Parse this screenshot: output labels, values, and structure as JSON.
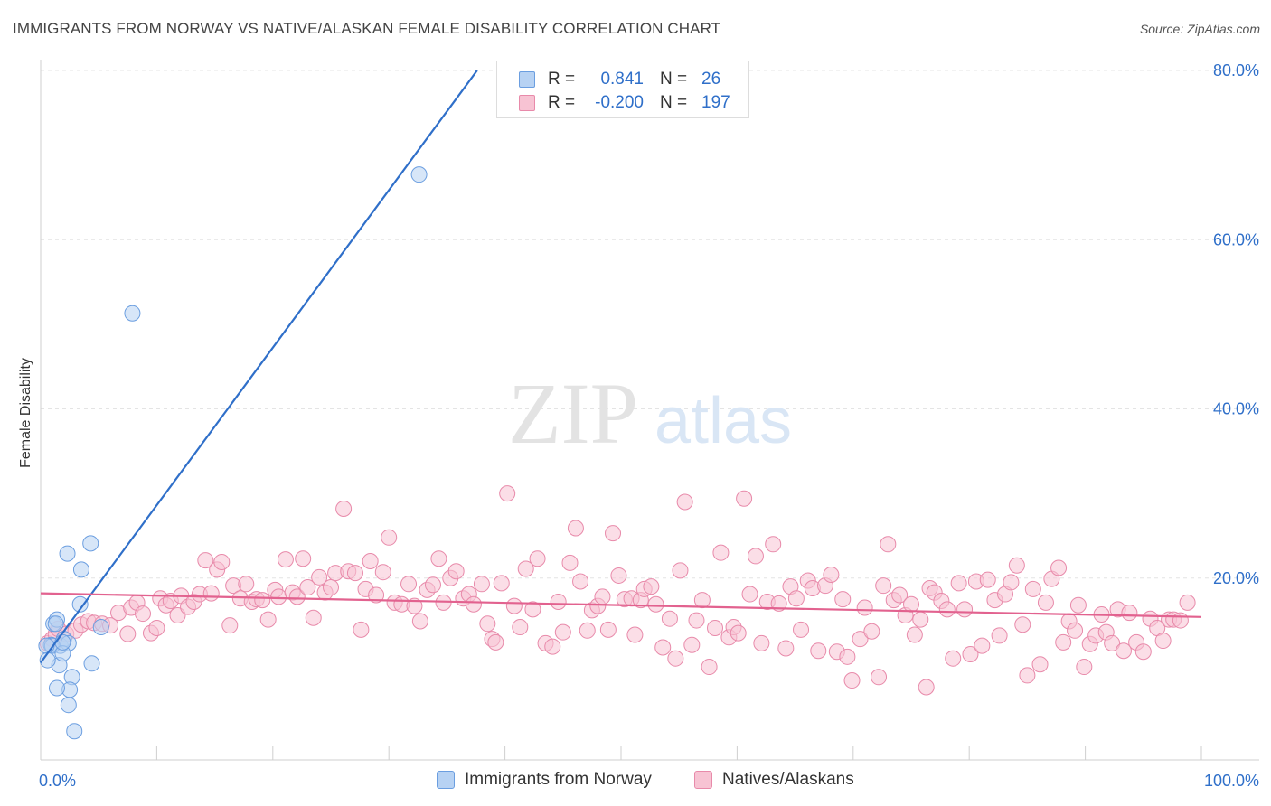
{
  "header": {
    "title": "IMMIGRANTS FROM NORWAY VS NATIVE/ALASKAN FEMALE DISABILITY CORRELATION CHART",
    "source": "Source: ZipAtlas.com"
  },
  "watermark": {
    "zip": "ZIP",
    "atlas": "atlas"
  },
  "legend": {
    "rows": [
      {
        "r_label": "R =",
        "r_value": "0.841",
        "n_label": "N =",
        "n_value": "26"
      },
      {
        "r_label": "R =",
        "r_value": "-0.200",
        "n_label": "N =",
        "n_value": "197"
      }
    ]
  },
  "bottom_legend": {
    "items": [
      {
        "label": "Immigrants from Norway"
      },
      {
        "label": "Natives/Alaskans"
      }
    ]
  },
  "colors": {
    "blue_fill": "#b7d2f3",
    "blue_stroke": "#6b9ee0",
    "blue_line": "#2f6fc9",
    "pink_fill": "#f7c3d3",
    "pink_stroke": "#e88aaa",
    "pink_line": "#e2628f",
    "tick_label": "#2f6fc9",
    "grid": "#e4e4e4"
  },
  "chart_data": {
    "type": "scatter",
    "title": "IMMIGRANTS FROM NORWAY VS NATIVE/ALASKAN FEMALE DISABILITY CORRELATION CHART",
    "xlabel": "",
    "ylabel": "Female Disability",
    "xlim": [
      0,
      100
    ],
    "ylim": [
      0,
      80
    ],
    "x_tick_labels": [
      "0.0%",
      "100.0%"
    ],
    "y_ticks": [
      20,
      40,
      60,
      80
    ],
    "y_tick_labels": [
      "20.0%",
      "40.0%",
      "60.0%",
      "80.0%"
    ],
    "grid": true,
    "legend_position": "top-center",
    "series": [
      {
        "name": "Immigrants from Norway",
        "r": 0.841,
        "n": 26,
        "trend": [
          [
            0,
            10.0
          ],
          [
            37.6,
            80.0
          ]
        ],
        "points": [
          [
            1.1,
            14.6
          ],
          [
            2.3,
            22.9
          ],
          [
            3.5,
            21.0
          ],
          [
            4.3,
            24.1
          ],
          [
            5.2,
            14.2
          ],
          [
            1.7,
            12.0
          ],
          [
            0.9,
            12.1
          ],
          [
            1.4,
            15.1
          ],
          [
            2.0,
            12.8
          ],
          [
            2.4,
            12.3
          ],
          [
            1.6,
            9.7
          ],
          [
            2.7,
            8.3
          ],
          [
            2.5,
            6.8
          ],
          [
            1.4,
            7.0
          ],
          [
            2.4,
            5.0
          ],
          [
            2.9,
            1.9
          ],
          [
            4.4,
            9.9
          ],
          [
            1.0,
            12.0
          ],
          [
            0.5,
            12.0
          ],
          [
            0.6,
            10.3
          ],
          [
            1.3,
            14.6
          ],
          [
            3.4,
            16.9
          ],
          [
            7.9,
            51.3
          ],
          [
            32.6,
            67.7
          ],
          [
            1.9,
            11.1
          ],
          [
            1.9,
            12.4
          ]
        ]
      },
      {
        "name": "Natives/Alaskans",
        "r": -0.2,
        "n": 197,
        "trend": [
          [
            0,
            18.2
          ],
          [
            100,
            15.4
          ]
        ],
        "points": [
          [
            0.6,
            12.3
          ],
          [
            1.0,
            12.8
          ],
          [
            1.3,
            13.4
          ],
          [
            1.5,
            14.0
          ],
          [
            2.2,
            13.4
          ],
          [
            3.0,
            13.8
          ],
          [
            3.5,
            14.5
          ],
          [
            4.1,
            14.9
          ],
          [
            4.6,
            14.7
          ],
          [
            5.3,
            14.6
          ],
          [
            6.0,
            14.4
          ],
          [
            6.7,
            15.9
          ],
          [
            7.5,
            13.4
          ],
          [
            7.8,
            16.5
          ],
          [
            8.3,
            17.1
          ],
          [
            8.8,
            15.8
          ],
          [
            9.5,
            13.5
          ],
          [
            10.0,
            14.1
          ],
          [
            10.3,
            17.6
          ],
          [
            10.8,
            16.8
          ],
          [
            11.2,
            17.3
          ],
          [
            11.8,
            15.6
          ],
          [
            12.1,
            17.9
          ],
          [
            12.7,
            16.6
          ],
          [
            13.2,
            17.2
          ],
          [
            13.7,
            18.1
          ],
          [
            14.2,
            22.1
          ],
          [
            14.7,
            18.2
          ],
          [
            15.2,
            21.0
          ],
          [
            15.6,
            21.9
          ],
          [
            16.3,
            14.4
          ],
          [
            16.6,
            19.1
          ],
          [
            17.2,
            17.6
          ],
          [
            17.7,
            19.3
          ],
          [
            18.2,
            17.2
          ],
          [
            18.6,
            17.5
          ],
          [
            19.1,
            17.4
          ],
          [
            19.6,
            15.1
          ],
          [
            20.2,
            18.6
          ],
          [
            20.5,
            17.8
          ],
          [
            21.1,
            22.2
          ],
          [
            21.7,
            18.3
          ],
          [
            22.1,
            17.8
          ],
          [
            22.6,
            22.3
          ],
          [
            23.0,
            18.9
          ],
          [
            23.5,
            15.3
          ],
          [
            24.0,
            20.1
          ],
          [
            24.5,
            18.3
          ],
          [
            25.0,
            18.9
          ],
          [
            25.4,
            20.6
          ],
          [
            26.1,
            28.2
          ],
          [
            26.5,
            20.8
          ],
          [
            27.1,
            20.6
          ],
          [
            27.6,
            13.9
          ],
          [
            28.0,
            18.7
          ],
          [
            28.4,
            22.0
          ],
          [
            28.9,
            18.0
          ],
          [
            29.5,
            20.7
          ],
          [
            30.0,
            24.8
          ],
          [
            30.5,
            17.1
          ],
          [
            31.1,
            16.9
          ],
          [
            31.7,
            19.3
          ],
          [
            32.2,
            16.7
          ],
          [
            32.7,
            14.9
          ],
          [
            33.3,
            18.6
          ],
          [
            33.8,
            19.2
          ],
          [
            34.3,
            22.3
          ],
          [
            34.7,
            17.1
          ],
          [
            35.3,
            20.0
          ],
          [
            35.8,
            20.8
          ],
          [
            36.4,
            17.6
          ],
          [
            36.9,
            18.1
          ],
          [
            37.3,
            16.9
          ],
          [
            38.0,
            19.3
          ],
          [
            38.5,
            14.6
          ],
          [
            38.9,
            12.8
          ],
          [
            39.2,
            12.4
          ],
          [
            39.7,
            19.4
          ],
          [
            40.2,
            30.0
          ],
          [
            40.8,
            16.7
          ],
          [
            41.3,
            14.2
          ],
          [
            41.8,
            21.1
          ],
          [
            42.4,
            16.3
          ],
          [
            42.8,
            22.3
          ],
          [
            43.5,
            12.3
          ],
          [
            44.1,
            11.9
          ],
          [
            44.6,
            17.2
          ],
          [
            45.0,
            13.6
          ],
          [
            45.6,
            21.8
          ],
          [
            46.1,
            25.9
          ],
          [
            46.5,
            19.6
          ],
          [
            47.1,
            13.8
          ],
          [
            47.5,
            16.2
          ],
          [
            48.0,
            16.7
          ],
          [
            48.4,
            17.8
          ],
          [
            48.9,
            13.9
          ],
          [
            49.3,
            25.3
          ],
          [
            49.8,
            20.3
          ],
          [
            50.3,
            17.5
          ],
          [
            50.9,
            17.6
          ],
          [
            51.2,
            13.3
          ],
          [
            51.7,
            17.4
          ],
          [
            52.0,
            18.7
          ],
          [
            52.6,
            19.0
          ],
          [
            53.0,
            16.9
          ],
          [
            53.6,
            11.8
          ],
          [
            54.2,
            15.2
          ],
          [
            54.7,
            10.5
          ],
          [
            55.1,
            20.9
          ],
          [
            55.5,
            29.0
          ],
          [
            56.1,
            12.1
          ],
          [
            56.5,
            15.0
          ],
          [
            57.0,
            17.4
          ],
          [
            57.6,
            9.5
          ],
          [
            58.1,
            14.1
          ],
          [
            58.6,
            23.0
          ],
          [
            59.3,
            13.0
          ],
          [
            59.7,
            14.2
          ],
          [
            60.1,
            13.5
          ],
          [
            60.6,
            29.4
          ],
          [
            61.1,
            18.1
          ],
          [
            61.6,
            22.6
          ],
          [
            62.1,
            12.3
          ],
          [
            62.6,
            17.2
          ],
          [
            63.1,
            24.0
          ],
          [
            63.6,
            17.0
          ],
          [
            64.2,
            11.7
          ],
          [
            64.6,
            19.0
          ],
          [
            65.1,
            17.6
          ],
          [
            65.5,
            13.9
          ],
          [
            66.1,
            19.7
          ],
          [
            66.5,
            18.8
          ],
          [
            67.0,
            11.4
          ],
          [
            67.6,
            19.1
          ],
          [
            68.1,
            20.4
          ],
          [
            68.6,
            11.3
          ],
          [
            69.1,
            17.5
          ],
          [
            69.5,
            10.7
          ],
          [
            69.9,
            7.9
          ],
          [
            70.6,
            12.8
          ],
          [
            71.0,
            16.5
          ],
          [
            71.6,
            13.7
          ],
          [
            72.2,
            8.3
          ],
          [
            72.6,
            19.1
          ],
          [
            73.0,
            24.0
          ],
          [
            73.5,
            17.4
          ],
          [
            74.0,
            18.0
          ],
          [
            74.5,
            15.6
          ],
          [
            75.0,
            16.9
          ],
          [
            75.3,
            13.3
          ],
          [
            75.8,
            15.1
          ],
          [
            76.3,
            7.1
          ],
          [
            76.6,
            18.8
          ],
          [
            77.0,
            18.3
          ],
          [
            77.6,
            17.3
          ],
          [
            78.1,
            16.3
          ],
          [
            78.6,
            10.5
          ],
          [
            79.1,
            19.4
          ],
          [
            79.6,
            16.3
          ],
          [
            80.1,
            11.0
          ],
          [
            80.6,
            19.6
          ],
          [
            81.1,
            12.0
          ],
          [
            81.6,
            19.8
          ],
          [
            82.2,
            17.4
          ],
          [
            82.6,
            13.2
          ],
          [
            83.1,
            18.1
          ],
          [
            83.6,
            19.5
          ],
          [
            84.1,
            21.5
          ],
          [
            84.6,
            14.5
          ],
          [
            85.0,
            8.5
          ],
          [
            85.5,
            18.7
          ],
          [
            86.1,
            9.8
          ],
          [
            86.6,
            17.1
          ],
          [
            87.1,
            19.9
          ],
          [
            87.7,
            21.2
          ],
          [
            88.1,
            12.4
          ],
          [
            88.6,
            14.9
          ],
          [
            89.1,
            13.8
          ],
          [
            89.4,
            16.8
          ],
          [
            89.9,
            9.5
          ],
          [
            90.4,
            12.2
          ],
          [
            90.9,
            13.2
          ],
          [
            91.4,
            15.7
          ],
          [
            91.8,
            13.6
          ],
          [
            92.3,
            12.3
          ],
          [
            92.8,
            16.3
          ],
          [
            93.3,
            11.4
          ],
          [
            93.8,
            15.9
          ],
          [
            94.4,
            12.4
          ],
          [
            95.0,
            11.3
          ],
          [
            95.6,
            15.2
          ],
          [
            96.2,
            14.1
          ],
          [
            96.7,
            12.6
          ],
          [
            97.2,
            15.1
          ],
          [
            97.6,
            15.1
          ],
          [
            98.2,
            15.0
          ],
          [
            98.8,
            17.1
          ]
        ]
      }
    ]
  }
}
